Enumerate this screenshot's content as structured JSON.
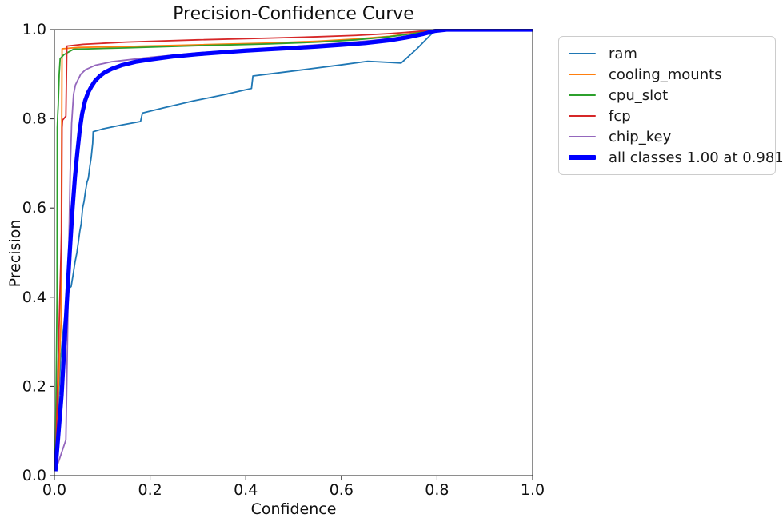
{
  "chart_data": {
    "type": "line",
    "title": "Precision-Confidence Curve",
    "xlabel": "Confidence",
    "ylabel": "Precision",
    "xlim": [
      0.0,
      1.0
    ],
    "ylim": [
      0.0,
      1.0
    ],
    "x_ticks": [
      0.0,
      0.2,
      0.4,
      0.6,
      0.8,
      1.0
    ],
    "y_ticks": [
      0.0,
      0.2,
      0.4,
      0.6,
      0.8,
      1.0
    ],
    "x_tick_labels": [
      "0.0",
      "0.2",
      "0.4",
      "0.6",
      "0.8",
      "1.0"
    ],
    "y_tick_labels": [
      "0.0",
      "0.2",
      "0.4",
      "0.6",
      "0.8",
      "1.0"
    ],
    "grid": false,
    "legend_position": "outside-right",
    "spine_color": "#1c1c1c",
    "series": [
      {
        "name": "ram",
        "color": "#1f77b4",
        "line_width": 1.8,
        "points": [
          [
            0.002,
            0.02
          ],
          [
            0.005,
            0.1
          ],
          [
            0.009,
            0.18
          ],
          [
            0.013,
            0.26
          ],
          [
            0.017,
            0.31
          ],
          [
            0.021,
            0.35
          ],
          [
            0.025,
            0.375
          ],
          [
            0.028,
            0.4
          ],
          [
            0.031,
            0.42
          ],
          [
            0.035,
            0.424
          ],
          [
            0.039,
            0.45
          ],
          [
            0.043,
            0.478
          ],
          [
            0.047,
            0.5
          ],
          [
            0.05,
            0.523
          ],
          [
            0.053,
            0.547
          ],
          [
            0.056,
            0.565
          ],
          [
            0.059,
            0.6
          ],
          [
            0.062,
            0.615
          ],
          [
            0.065,
            0.638
          ],
          [
            0.068,
            0.657
          ],
          [
            0.071,
            0.667
          ],
          [
            0.074,
            0.693
          ],
          [
            0.077,
            0.714
          ],
          [
            0.079,
            0.735
          ],
          [
            0.08,
            0.745
          ],
          [
            0.081,
            0.771
          ],
          [
            0.1,
            0.777
          ],
          [
            0.14,
            0.786
          ],
          [
            0.18,
            0.794
          ],
          [
            0.184,
            0.813
          ],
          [
            0.23,
            0.825
          ],
          [
            0.29,
            0.84
          ],
          [
            0.35,
            0.853
          ],
          [
            0.412,
            0.868
          ],
          [
            0.415,
            0.896
          ],
          [
            0.46,
            0.902
          ],
          [
            0.527,
            0.911
          ],
          [
            0.6,
            0.921
          ],
          [
            0.655,
            0.929
          ],
          [
            0.71,
            0.926
          ],
          [
            0.725,
            0.925
          ],
          [
            0.758,
            0.957
          ],
          [
            0.79,
            0.992
          ],
          [
            0.812,
            1.0
          ],
          [
            1.0,
            1.0
          ]
        ]
      },
      {
        "name": "cooling_mounts",
        "color": "#ff7f0e",
        "line_width": 1.8,
        "points": [
          [
            0.002,
            0.02
          ],
          [
            0.014,
            0.35
          ],
          [
            0.015,
            0.7
          ],
          [
            0.016,
            0.957
          ],
          [
            0.05,
            0.96
          ],
          [
            0.15,
            0.962
          ],
          [
            0.3,
            0.966
          ],
          [
            0.45,
            0.97
          ],
          [
            0.55,
            0.974
          ],
          [
            0.63,
            0.979
          ],
          [
            0.7,
            0.985
          ],
          [
            0.75,
            0.992
          ],
          [
            0.79,
            0.998
          ],
          [
            0.81,
            1.0
          ],
          [
            1.0,
            1.0
          ]
        ]
      },
      {
        "name": "cpu_slot",
        "color": "#2ca02c",
        "line_width": 1.8,
        "points": [
          [
            0.002,
            0.02
          ],
          [
            0.0055,
            0.4
          ],
          [
            0.006,
            0.78
          ],
          [
            0.007,
            0.81
          ],
          [
            0.008,
            0.83
          ],
          [
            0.01,
            0.9
          ],
          [
            0.012,
            0.935
          ],
          [
            0.02,
            0.944
          ],
          [
            0.04,
            0.956
          ],
          [
            0.15,
            0.959
          ],
          [
            0.3,
            0.964
          ],
          [
            0.45,
            0.968
          ],
          [
            0.55,
            0.972
          ],
          [
            0.63,
            0.977
          ],
          [
            0.7,
            0.984
          ],
          [
            0.75,
            0.991
          ],
          [
            0.79,
            0.998
          ],
          [
            0.81,
            1.0
          ],
          [
            1.0,
            1.0
          ]
        ]
      },
      {
        "name": "fcp",
        "color": "#d62728",
        "line_width": 1.8,
        "points": [
          [
            0.002,
            0.01
          ],
          [
            0.015,
            0.55
          ],
          [
            0.016,
            0.78
          ],
          [
            0.017,
            0.797
          ],
          [
            0.024,
            0.806
          ],
          [
            0.025,
            0.88
          ],
          [
            0.026,
            0.963
          ],
          [
            0.06,
            0.967
          ],
          [
            0.15,
            0.972
          ],
          [
            0.3,
            0.977
          ],
          [
            0.45,
            0.981
          ],
          [
            0.55,
            0.984
          ],
          [
            0.63,
            0.987
          ],
          [
            0.7,
            0.991
          ],
          [
            0.75,
            0.995
          ],
          [
            0.79,
            0.999
          ],
          [
            0.81,
            1.0
          ],
          [
            1.0,
            1.0
          ]
        ]
      },
      {
        "name": "chip_key",
        "color": "#9467bd",
        "line_width": 1.8,
        "points": [
          [
            0.002,
            0.01
          ],
          [
            0.024,
            0.08
          ],
          [
            0.027,
            0.28
          ],
          [
            0.03,
            0.5
          ],
          [
            0.033,
            0.68
          ],
          [
            0.036,
            0.79
          ],
          [
            0.04,
            0.855
          ],
          [
            0.044,
            0.876
          ],
          [
            0.055,
            0.9
          ],
          [
            0.065,
            0.91
          ],
          [
            0.085,
            0.92
          ],
          [
            0.12,
            0.928
          ],
          [
            0.2,
            0.938
          ],
          [
            0.3,
            0.948
          ],
          [
            0.4,
            0.955
          ],
          [
            0.5,
            0.962
          ],
          [
            0.6,
            0.97
          ],
          [
            0.66,
            0.975
          ],
          [
            0.71,
            0.981
          ],
          [
            0.75,
            0.988
          ],
          [
            0.78,
            0.995
          ],
          [
            0.8,
            0.999
          ],
          [
            0.82,
            1.0
          ],
          [
            1.0,
            1.0
          ]
        ]
      },
      {
        "name": "all classes 1.00 at 0.981",
        "color": "#0000ff",
        "line_width": 5.2,
        "points": [
          [
            0.002,
            0.01
          ],
          [
            0.015,
            0.18
          ],
          [
            0.025,
            0.37
          ],
          [
            0.032,
            0.5
          ],
          [
            0.038,
            0.6
          ],
          [
            0.043,
            0.67
          ],
          [
            0.048,
            0.725
          ],
          [
            0.053,
            0.775
          ],
          [
            0.058,
            0.812
          ],
          [
            0.064,
            0.84
          ],
          [
            0.07,
            0.858
          ],
          [
            0.077,
            0.872
          ],
          [
            0.085,
            0.885
          ],
          [
            0.095,
            0.896
          ],
          [
            0.105,
            0.904
          ],
          [
            0.12,
            0.912
          ],
          [
            0.14,
            0.92
          ],
          [
            0.17,
            0.928
          ],
          [
            0.2,
            0.933
          ],
          [
            0.25,
            0.94
          ],
          [
            0.3,
            0.945
          ],
          [
            0.35,
            0.949
          ],
          [
            0.4,
            0.953
          ],
          [
            0.45,
            0.956
          ],
          [
            0.5,
            0.959
          ],
          [
            0.55,
            0.962
          ],
          [
            0.6,
            0.966
          ],
          [
            0.65,
            0.97
          ],
          [
            0.7,
            0.976
          ],
          [
            0.74,
            0.983
          ],
          [
            0.77,
            0.99
          ],
          [
            0.795,
            0.997
          ],
          [
            0.82,
            1.0
          ],
          [
            1.0,
            1.0
          ]
        ]
      }
    ]
  }
}
